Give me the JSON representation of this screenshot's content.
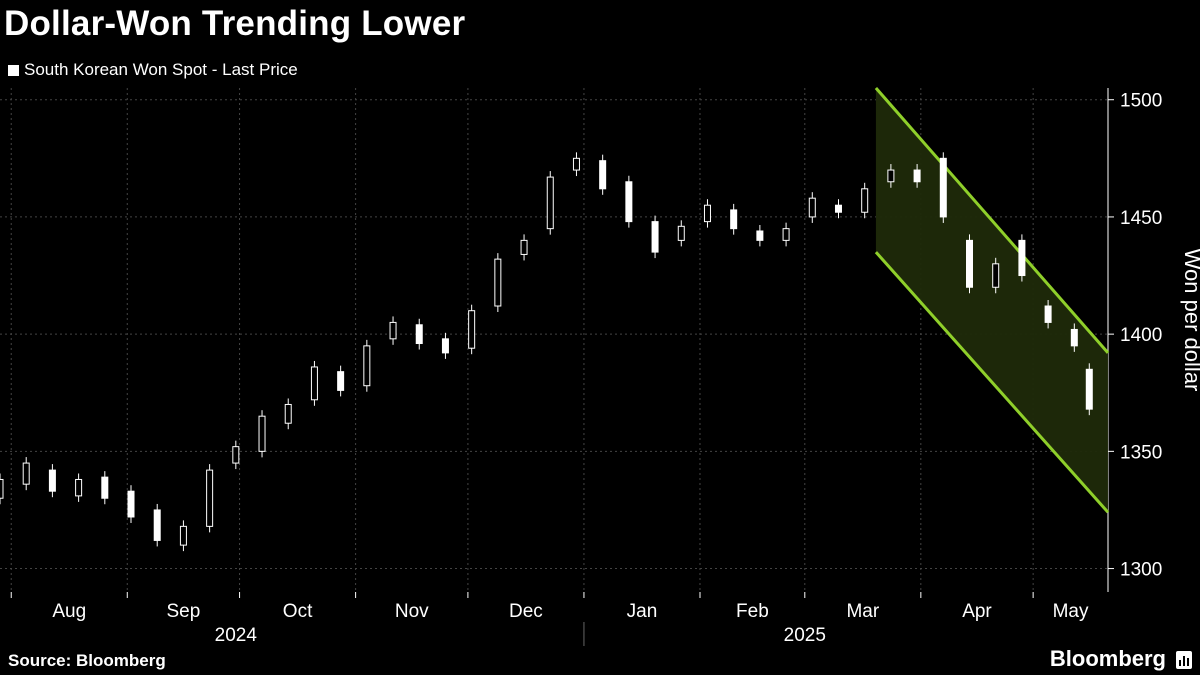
{
  "title": "Dollar-Won Trending Lower",
  "legend": {
    "label": "South Korean Won Spot - Last Price",
    "color": "#ffffff"
  },
  "source": "Source: Bloomberg",
  "brand": "Bloomberg",
  "colors": {
    "background": "#000000",
    "candle": "#ffffff",
    "channel_line": "#8fcf2a",
    "channel_fill": "#1f2a0a",
    "grid": "#444444"
  },
  "chart_data": {
    "type": "candlestick",
    "title": "Dollar-Won Trending Lower",
    "ylabel": "Won per dollar",
    "ylim": [
      1290,
      1505
    ],
    "yticks": [
      1300,
      1350,
      1400,
      1450,
      1500
    ],
    "xlim": [
      "2024-07-29",
      "2025-05-21"
    ],
    "month_ticks": [
      {
        "label": "Aug",
        "date": "2024-08-01"
      },
      {
        "label": "Sep",
        "date": "2024-09-01"
      },
      {
        "label": "Oct",
        "date": "2024-10-01"
      },
      {
        "label": "Nov",
        "date": "2024-11-01"
      },
      {
        "label": "Dec",
        "date": "2024-12-01"
      },
      {
        "label": "Jan",
        "date": "2025-01-01"
      },
      {
        "label": "Feb",
        "date": "2025-02-01"
      },
      {
        "label": "Mar",
        "date": "2025-03-01"
      },
      {
        "label": "Apr",
        "date": "2025-04-01"
      },
      {
        "label": "May",
        "date": "2025-05-01"
      }
    ],
    "year_labels": [
      {
        "label": "2024",
        "date": "2024-09-30"
      },
      {
        "label": "2025",
        "date": "2025-03-01"
      }
    ],
    "series": [
      {
        "name": "South Korean Won Spot - Last Price",
        "points": [
          [
            "2024-07-29",
            1330,
            1338
          ],
          [
            "2024-08-05",
            1336,
            1345
          ],
          [
            "2024-08-12",
            1342,
            1333
          ],
          [
            "2024-08-19",
            1331,
            1338
          ],
          [
            "2024-08-26",
            1339,
            1330
          ],
          [
            "2024-09-02",
            1333,
            1322
          ],
          [
            "2024-09-09",
            1325,
            1312
          ],
          [
            "2024-09-16",
            1310,
            1318
          ],
          [
            "2024-09-23",
            1318,
            1342
          ],
          [
            "2024-09-30",
            1345,
            1352
          ],
          [
            "2024-10-07",
            1350,
            1365
          ],
          [
            "2024-10-14",
            1362,
            1370
          ],
          [
            "2024-10-21",
            1372,
            1386
          ],
          [
            "2024-10-28",
            1384,
            1376
          ],
          [
            "2024-11-04",
            1378,
            1395
          ],
          [
            "2024-11-11",
            1398,
            1405
          ],
          [
            "2024-11-18",
            1404,
            1396
          ],
          [
            "2024-11-25",
            1398,
            1392
          ],
          [
            "2024-12-02",
            1394,
            1410
          ],
          [
            "2024-12-09",
            1412,
            1432
          ],
          [
            "2024-12-16",
            1434,
            1440
          ],
          [
            "2024-12-23",
            1445,
            1467
          ],
          [
            "2024-12-30",
            1470,
            1475
          ],
          [
            "2025-01-06",
            1474,
            1462
          ],
          [
            "2025-01-13",
            1465,
            1448
          ],
          [
            "2025-01-20",
            1448,
            1435
          ],
          [
            "2025-01-27",
            1440,
            1446
          ],
          [
            "2025-02-03",
            1448,
            1455
          ],
          [
            "2025-02-10",
            1453,
            1445
          ],
          [
            "2025-02-17",
            1444,
            1440
          ],
          [
            "2025-02-24",
            1440,
            1445
          ],
          [
            "2025-03-03",
            1450,
            1458
          ],
          [
            "2025-03-10",
            1455,
            1452
          ],
          [
            "2025-03-17",
            1452,
            1462
          ],
          [
            "2025-03-24",
            1465,
            1470
          ],
          [
            "2025-03-31",
            1470,
            1465
          ],
          [
            "2025-04-07",
            1475,
            1450
          ],
          [
            "2025-04-14",
            1440,
            1420
          ],
          [
            "2025-04-21",
            1420,
            1430
          ],
          [
            "2025-04-28",
            1440,
            1425
          ],
          [
            "2025-05-05",
            1412,
            1405
          ],
          [
            "2025-05-12",
            1402,
            1395
          ],
          [
            "2025-05-16",
            1385,
            1368
          ]
        ]
      }
    ],
    "channel": {
      "upper": {
        "start": [
          "2025-03-20",
          1505
        ],
        "end": [
          "2025-05-21",
          1392
        ]
      },
      "lower": {
        "start": [
          "2025-03-20",
          1435
        ],
        "end": [
          "2025-05-21",
          1324
        ]
      }
    }
  }
}
